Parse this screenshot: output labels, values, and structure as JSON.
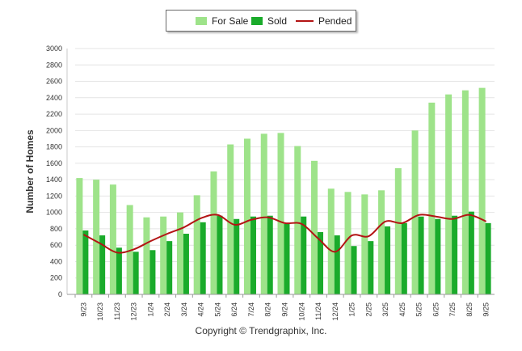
{
  "chart_data": {
    "type": "bar",
    "ylabel": "Number of Homes",
    "xlabel": "",
    "ylim": [
      0,
      3000
    ],
    "yticks": [
      0,
      200,
      400,
      600,
      800,
      1000,
      1200,
      1400,
      1600,
      1800,
      2000,
      2200,
      2400,
      2600,
      2800,
      3000
    ],
    "grid": true,
    "legend_position": "top-center",
    "categories": [
      "9/23",
      "10/23",
      "11/23",
      "12/23",
      "1/24",
      "2/24",
      "3/24",
      "4/24",
      "5/24",
      "6/24",
      "7/24",
      "8/24",
      "9/24",
      "10/24",
      "11/24",
      "12/24",
      "1/25",
      "2/25",
      "3/25",
      "4/25",
      "5/25",
      "6/25",
      "7/25",
      "8/25",
      "9/25"
    ],
    "series": [
      {
        "name": "For Sale",
        "kind": "bar",
        "color": "#9ee38a",
        "values": [
          1420,
          1400,
          1340,
          1090,
          940,
          950,
          1000,
          1210,
          1500,
          1830,
          1900,
          1960,
          1970,
          1810,
          1630,
          1290,
          1250,
          1220,
          1270,
          1540,
          2000,
          2340,
          2440,
          2490,
          2520
        ]
      },
      {
        "name": "Sold",
        "kind": "bar",
        "color": "#1aab2b",
        "values": [
          780,
          720,
          570,
          520,
          540,
          650,
          740,
          880,
          960,
          920,
          950,
          960,
          860,
          950,
          760,
          720,
          590,
          650,
          830,
          870,
          950,
          920,
          960,
          1010,
          870
        ]
      },
      {
        "name": "Pended",
        "kind": "line",
        "color": "#b31414",
        "values": [
          730,
          620,
          510,
          550,
          650,
          740,
          820,
          930,
          970,
          850,
          910,
          940,
          870,
          860,
          680,
          520,
          720,
          710,
          890,
          870,
          970,
          950,
          920,
          970,
          890
        ]
      }
    ]
  },
  "copyright": "Copyright © Trendgraphix, Inc."
}
